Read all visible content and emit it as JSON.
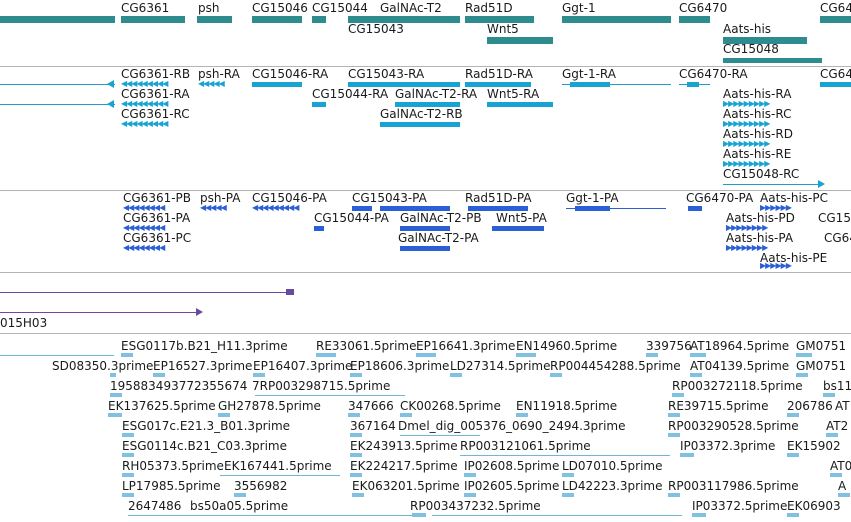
{
  "colors": {
    "gene": "#2f8c8e",
    "mrna": "#17a4d2",
    "cds": "#2b5fd6",
    "est": "#80c0e0",
    "purple": "#6a4aa0",
    "separator": "#b4b4b4"
  },
  "genes": {
    "cg6361": "CG6361",
    "psh": "psh",
    "cg15046": "CG15046",
    "cg15044": "CG15044",
    "galnac": "GalNAc-T2",
    "rad51d": "Rad51D",
    "ggt1": "Ggt-1",
    "cg6470": "CG6470",
    "cg64_cut": "CG64",
    "cg15043": "CG15043",
    "wnt5": "Wnt5",
    "aats": "Aats-his",
    "cg15048": "CG15048"
  },
  "mrnas": {
    "cg6361rb": "CG6361-RB",
    "psh_ra": "psh-RA",
    "cg15046ra": "CG15046-RA",
    "cg15043ra": "CG15043-RA",
    "rad51dra": "Rad51D-RA",
    "ggt1ra": "Ggt-1-RA",
    "cg6470ra": "CG6470-RA",
    "cg64_cut": "CG64",
    "cg6361ra": "CG6361-RA",
    "cg15044ra": "CG15044-RA",
    "galnacra": "GalNAc-T2-RA",
    "wnt5ra": "Wnt5-RA",
    "aatsra": "Aats-his-RA",
    "cg6361rc": "CG6361-RC",
    "galnacrb": "GalNAc-T2-RB",
    "aatsrc": "Aats-his-RC",
    "aatsrd": "Aats-his-RD",
    "aatsre": "Aats-his-RE",
    "cg15048rc": "CG15048-RC"
  },
  "proteins": {
    "cg6361pb": "CG6361-PB",
    "psh_pa": "psh-PA",
    "cg15046pa": "CG15046-PA",
    "cg15043pa": "CG15043-PA",
    "rad51dpa": "Rad51D-PA",
    "ggt1pa": "Ggt-1-PA",
    "cg6470pa": "CG6470-PA",
    "cg6361pa": "CG6361-PA",
    "cg15044pa": "CG15044-PA",
    "galnacpb": "GalNAc-T2-PB",
    "wnt5pa": "Wnt5-PA",
    "aatspc": "Aats-his-PC",
    "cg15_cut": "CG150",
    "aatspd": "Aats-his-PD",
    "cg6361pc": "CG6361-PC",
    "galnacpa": "GalNAc-T2-PA",
    "aatspa": "Aats-his-PA",
    "cg64_cut": "CG64",
    "aatspe": "Aats-his-PE"
  },
  "purple_track": {
    "label": "015H03"
  },
  "ests": {
    "r1": [
      "ESG0117b.B21_H11.3prime",
      "RE33061.5prime",
      "EP16641.3prime",
      "EN14960.5prime",
      "339756",
      "AT18964.5prime",
      "GM0751"
    ],
    "r2": [
      "SD08350.3prime",
      "EP16527.3prime",
      "EP16407.3prime",
      "EP18606.3prime",
      "LD27314.5prime",
      "RP004454288.5prime",
      "AT04139.5prime",
      "GM0751"
    ],
    "r3": [
      "195883493772355674",
      "7RP003298715.5prime",
      "RP003272118.5prime",
      "bs11"
    ],
    "r4": [
      "EK137625.5prime",
      "GH27878.5prime",
      "347666",
      "CK00268.5prime",
      "EN11918.5prime",
      "RE39715.5prime",
      "206786",
      "AT"
    ],
    "r5": [
      "ESG017c.E21.3_B01.3prime",
      "367164",
      "Dmel_dig_005376_0690_2494.3prime",
      "RP003290528.5prime",
      "AT2"
    ],
    "r6": [
      "ESG0114c.B21_C03.3prime",
      "EK243913.5prime",
      "RP003121061.5prime",
      "IP03372.3prime",
      "EK15902"
    ],
    "r7": [
      "RH05373.5prime",
      "EK167441.5prime",
      "EK224217.5prime",
      "IP02608.5prime",
      "LD07010.5prime",
      "AT0"
    ],
    "r8": [
      "LP17985.5prime",
      "3556982",
      "EK063201.5prime",
      "IP02605.5prime",
      "LD42223.3prime",
      "RP003117986.5prime",
      "A"
    ],
    "r9": [
      "2647486",
      "bs50a05.5prime",
      "RP003437232.5prime",
      "IP03372.5prime",
      "EK06903"
    ]
  }
}
